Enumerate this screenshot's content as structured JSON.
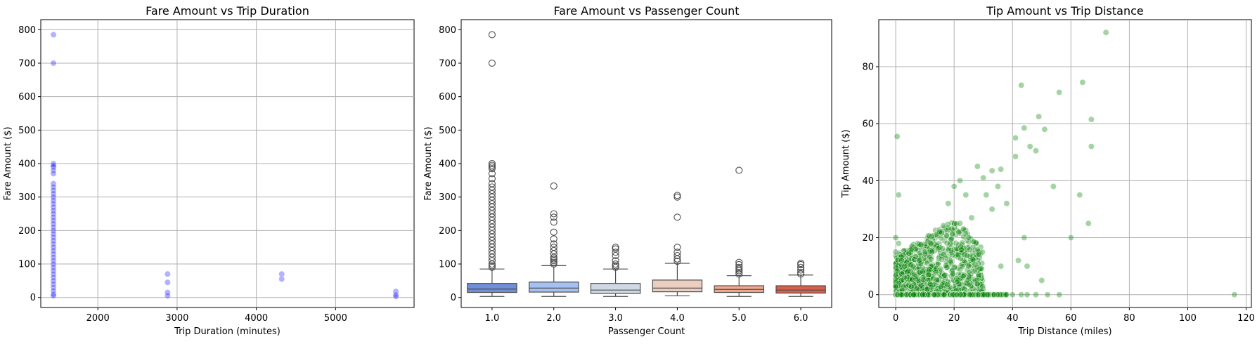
{
  "chart_data": [
    {
      "type": "scatter",
      "title": "Fare Amount vs Trip Duration",
      "xlabel": "Trip Duration (minutes)",
      "ylabel": "Fare Amount ($)",
      "xlim": [
        1280,
        5990
      ],
      "ylim": [
        -30,
        830
      ],
      "xticks": [
        2000,
        3000,
        4000,
        5000
      ],
      "yticks": [
        0,
        100,
        200,
        300,
        400,
        500,
        600,
        700,
        800
      ],
      "grid": true,
      "color": "#0000ff",
      "alpha": 0.3,
      "points": [
        [
          1440,
          785
        ],
        [
          1440,
          700
        ],
        [
          1440,
          400
        ],
        [
          1440,
          395
        ],
        [
          1440,
          390
        ],
        [
          1440,
          380
        ],
        [
          1440,
          370
        ],
        [
          1440,
          340
        ],
        [
          1440,
          330
        ],
        [
          1440,
          320
        ],
        [
          1440,
          310
        ],
        [
          1440,
          300
        ],
        [
          1440,
          290
        ],
        [
          1440,
          280
        ],
        [
          1440,
          270
        ],
        [
          1440,
          260
        ],
        [
          1440,
          250
        ],
        [
          1440,
          240
        ],
        [
          1440,
          230
        ],
        [
          1440,
          220
        ],
        [
          1440,
          210
        ],
        [
          1440,
          200
        ],
        [
          1440,
          190
        ],
        [
          1440,
          180
        ],
        [
          1440,
          170
        ],
        [
          1440,
          160
        ],
        [
          1440,
          150
        ],
        [
          1440,
          140
        ],
        [
          1440,
          130
        ],
        [
          1440,
          120
        ],
        [
          1440,
          110
        ],
        [
          1440,
          100
        ],
        [
          1440,
          90
        ],
        [
          1440,
          80
        ],
        [
          1440,
          70
        ],
        [
          1440,
          60
        ],
        [
          1440,
          50
        ],
        [
          1440,
          40
        ],
        [
          1440,
          30
        ],
        [
          1440,
          20
        ],
        [
          1440,
          10
        ],
        [
          1440,
          5
        ],
        [
          2880,
          70
        ],
        [
          2880,
          45
        ],
        [
          2880,
          15
        ],
        [
          2880,
          5
        ],
        [
          4320,
          70
        ],
        [
          4320,
          55
        ],
        [
          5760,
          18
        ],
        [
          5760,
          8
        ],
        [
          5760,
          3
        ]
      ]
    },
    {
      "type": "box",
      "title": "Fare Amount vs Passenger Count",
      "xlabel": "Passenger Count",
      "ylabel": "Fare Amount ($)",
      "ylim": [
        -30,
        830
      ],
      "yticks": [
        0,
        100,
        200,
        300,
        400,
        500,
        600,
        700,
        800
      ],
      "grid": false,
      "categories": [
        "1.0",
        "2.0",
        "3.0",
        "4.0",
        "5.0",
        "6.0"
      ],
      "boxes": [
        {
          "min": 3,
          "q1": 15,
          "median": 25,
          "q3": 42,
          "max": 85,
          "color": "#6f8fd8",
          "outliers": [
            785,
            700,
            400,
            395,
            390,
            385,
            370,
            355,
            340,
            330,
            320,
            310,
            300,
            290,
            280,
            270,
            260,
            250,
            240,
            230,
            220,
            210,
            200,
            190,
            180,
            170,
            160,
            150,
            140,
            130,
            120,
            110,
            100,
            95,
            90
          ]
        },
        {
          "min": 3,
          "q1": 16,
          "median": 28,
          "q3": 46,
          "max": 95,
          "color": "#a5c0f2",
          "outliers": [
            333,
            250,
            240,
            225,
            195,
            175,
            160,
            150,
            140,
            130,
            120,
            115,
            110,
            105,
            100
          ]
        },
        {
          "min": 3,
          "q1": 12,
          "median": 22,
          "q3": 42,
          "max": 85,
          "color": "#cfd8e5",
          "outliers": [
            150,
            145,
            135,
            125,
            110,
            100,
            95,
            90
          ]
        },
        {
          "min": 5,
          "q1": 17,
          "median": 28,
          "q3": 52,
          "max": 102,
          "color": "#eacebf",
          "outliers": [
            305,
            300,
            240,
            150,
            135,
            125,
            115,
            108
          ]
        },
        {
          "min": 3,
          "q1": 15,
          "median": 24,
          "q3": 35,
          "max": 65,
          "color": "#f0a98d",
          "outliers": [
            380,
            105,
            98,
            90,
            85,
            80,
            75,
            70
          ]
        },
        {
          "min": 3,
          "q1": 13,
          "median": 22,
          "q3": 35,
          "max": 67,
          "color": "#d65f4d",
          "outliers": [
            102,
            98,
            90,
            82,
            75,
            70
          ]
        }
      ]
    },
    {
      "type": "scatter",
      "title": "Tip Amount vs Trip Distance",
      "xlabel": "Trip Distance (miles)",
      "ylabel": "Tip Amount ($)",
      "xlim": [
        -5.8,
        121.8
      ],
      "ylim": [
        -4.5,
        96.5
      ],
      "xticks": [
        0,
        20,
        40,
        60,
        80,
        100,
        120
      ],
      "yticks": [
        0,
        20,
        40,
        60,
        80
      ],
      "grid": true,
      "color": "#008000",
      "alpha": 0.35,
      "points": [
        [
          72,
          92
        ],
        [
          64,
          74.5
        ],
        [
          43,
          73.5
        ],
        [
          56,
          71
        ],
        [
          67,
          61.5
        ],
        [
          49,
          62.5
        ],
        [
          44,
          58.5
        ],
        [
          51,
          58
        ],
        [
          46,
          52
        ],
        [
          0.5,
          55.5
        ],
        [
          67,
          52
        ],
        [
          48,
          50.5
        ],
        [
          41,
          48.5
        ],
        [
          41,
          55
        ],
        [
          54,
          38
        ],
        [
          63,
          35
        ],
        [
          1,
          35
        ],
        [
          66,
          25
        ],
        [
          60,
          20
        ],
        [
          116,
          0
        ],
        [
          36,
          44
        ],
        [
          33,
          43.5
        ],
        [
          30,
          41
        ],
        [
          28,
          45
        ],
        [
          38,
          32
        ],
        [
          35,
          38
        ],
        [
          33,
          30
        ],
        [
          31,
          35
        ],
        [
          36,
          10
        ],
        [
          44,
          20
        ],
        [
          45,
          10
        ],
        [
          42,
          12
        ],
        [
          50,
          5
        ],
        [
          52,
          0
        ],
        [
          56,
          0
        ],
        [
          48,
          0
        ],
        [
          38,
          0
        ],
        [
          45,
          0
        ],
        [
          40,
          0
        ],
        [
          43,
          0
        ],
        [
          35,
          0
        ],
        [
          30,
          0
        ],
        [
          26,
          27
        ],
        [
          24,
          35
        ],
        [
          22,
          40
        ],
        [
          20,
          38
        ],
        [
          18,
          32
        ],
        [
          25,
          20
        ],
        [
          22,
          25
        ],
        [
          15,
          22
        ],
        [
          12,
          18
        ],
        [
          10,
          15
        ],
        [
          8,
          12
        ],
        [
          6,
          10
        ],
        [
          4,
          8
        ],
        [
          3,
          6
        ],
        [
          2,
          5
        ],
        [
          1,
          4
        ],
        [
          0,
          3
        ],
        [
          0,
          15
        ],
        [
          0,
          20
        ],
        [
          1,
          18
        ],
        [
          2,
          12
        ]
      ],
      "dense_region": {
        "x": [
          0,
          30
        ],
        "y_max_at_x": [
          [
            0,
            14
          ],
          [
            5,
            17
          ],
          [
            10,
            20
          ],
          [
            15,
            24
          ],
          [
            20,
            26
          ],
          [
            25,
            22
          ],
          [
            30,
            16
          ]
        ]
      }
    }
  ]
}
